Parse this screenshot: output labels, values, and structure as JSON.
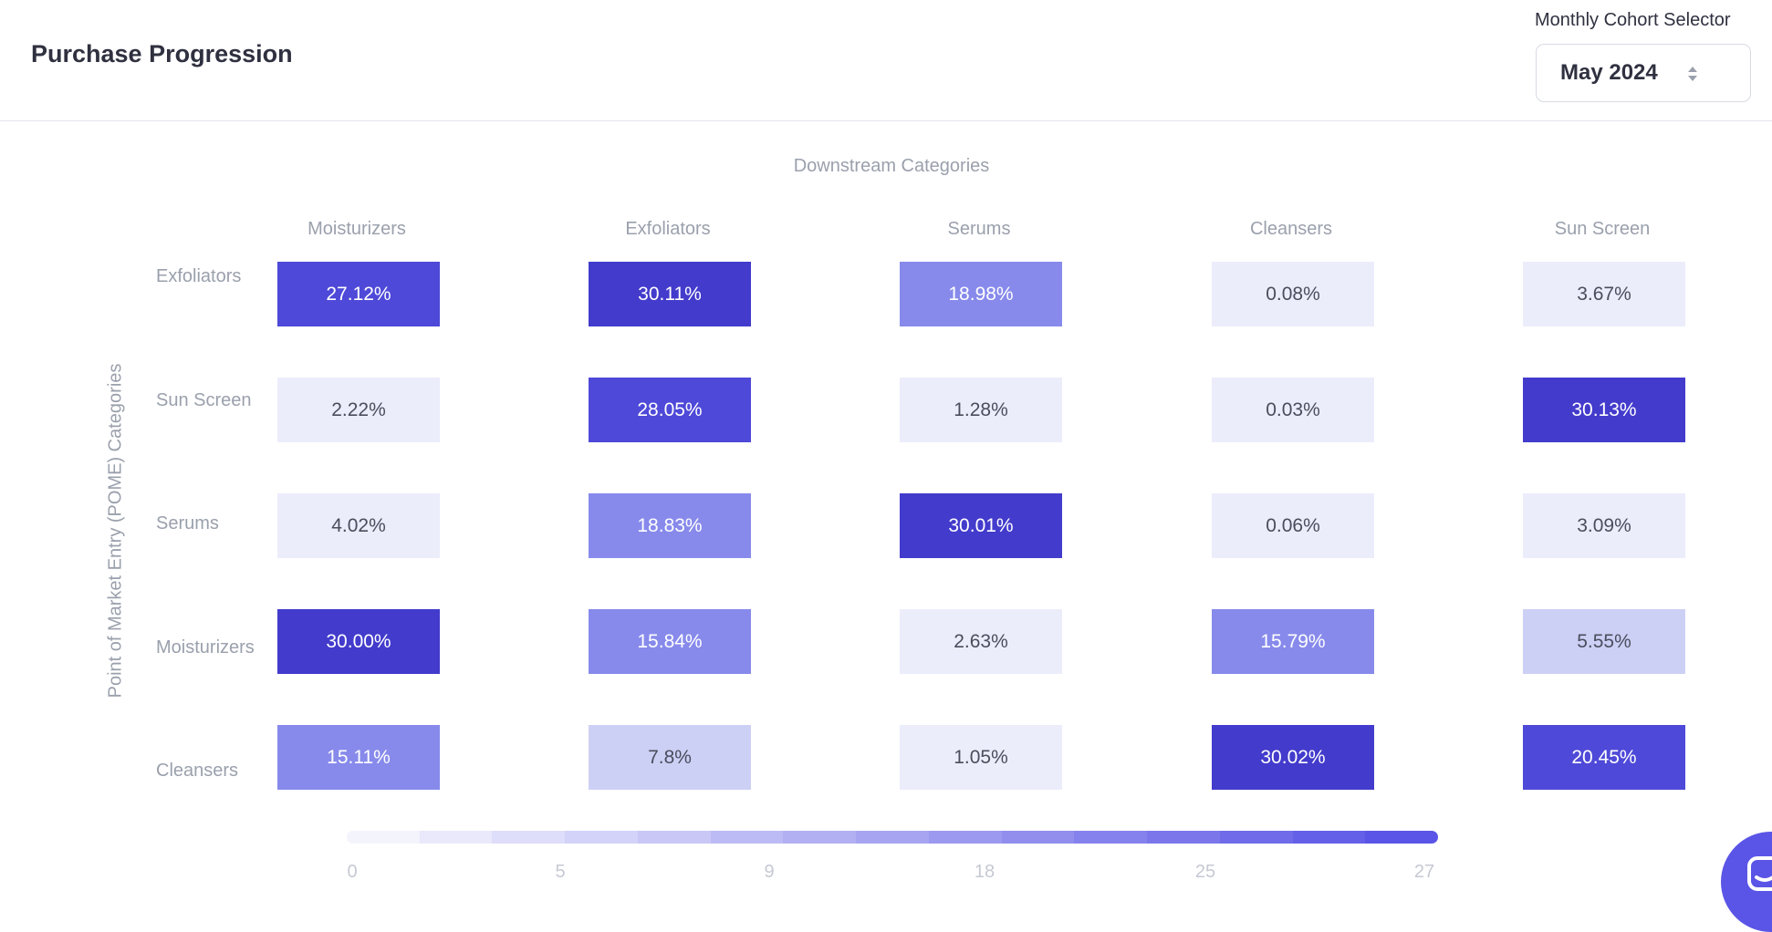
{
  "header": {
    "title": "Purchase Progression",
    "selector_label": "Monthly Cohort Selector",
    "selected_month": "May 2024",
    "arrows_icon": "up-down-arrows-icon"
  },
  "chart_data": {
    "type": "heatmap",
    "title": "Purchase Progression",
    "xlabel": "Downstream Categories",
    "ylabel": "Point of Market Entry (POME) Categories",
    "columns": [
      "Moisturizers",
      "Exfoliators",
      "Serums",
      "Cleansers",
      "Sun Screen"
    ],
    "rows": [
      "Exfoliators",
      "Sun Screen",
      "Serums",
      "Moisturizers",
      "Cleansers"
    ],
    "values": [
      [
        27.12,
        30.11,
        18.98,
        0.08,
        3.67
      ],
      [
        2.22,
        28.05,
        1.28,
        0.03,
        30.13
      ],
      [
        4.02,
        18.83,
        30.01,
        0.06,
        3.09
      ],
      [
        30.0,
        15.84,
        2.63,
        15.79,
        5.55
      ],
      [
        15.11,
        7.8,
        1.05,
        30.02,
        20.45
      ]
    ],
    "labels": [
      [
        "27.12%",
        "30.11%",
        "18.98%",
        "0.08%",
        "3.67%"
      ],
      [
        "2.22%",
        "28.05%",
        "1.28%",
        "0.03%",
        "30.13%"
      ],
      [
        "4.02%",
        "18.83%",
        "30.01%",
        "0.06%",
        "3.09%"
      ],
      [
        "30.00%",
        "15.84%",
        "2.63%",
        "15.79%",
        "5.55%"
      ],
      [
        "15.11%",
        "7.8%",
        "1.05%",
        "30.02%",
        "20.45%"
      ]
    ],
    "legend": {
      "ticks": [
        "0",
        "5",
        "9",
        "18",
        "25",
        "27"
      ],
      "gradient_start": "#f4f4fd",
      "gradient_end": "#5a55e6"
    },
    "color_scale": {
      "very_light": "#ecedfb",
      "light": "#cdd0f5",
      "medium": "#878aeb",
      "strong": "#4e49d8",
      "darkest": "#433bcc",
      "text_dark": "#4a4d5c",
      "text_light": "#ffffff"
    }
  },
  "chat": {
    "icon": "chat-icon"
  }
}
